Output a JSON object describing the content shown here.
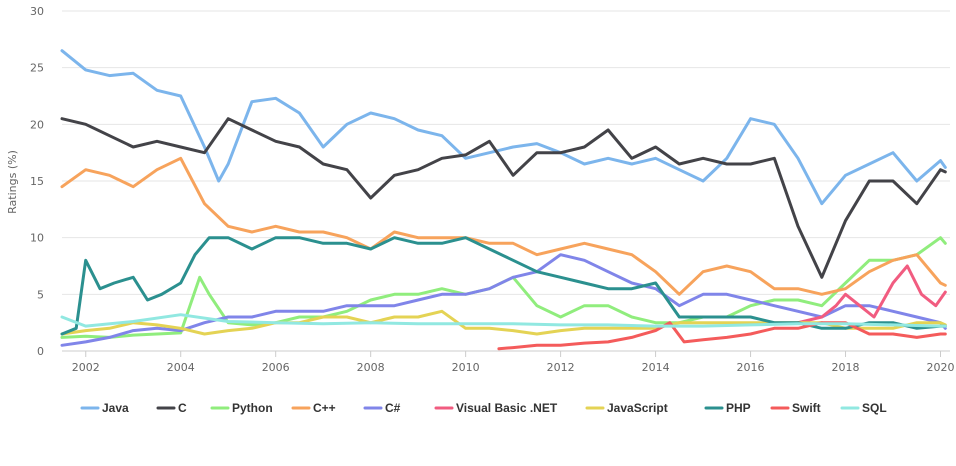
{
  "chart_data": {
    "type": "line",
    "title": "",
    "xlabel": "",
    "ylabel": "Ratings (%)",
    "xlim": [
      2001.5,
      2020.2
    ],
    "ylim": [
      0,
      30
    ],
    "yticks": [
      0,
      5,
      10,
      15,
      20,
      25,
      30
    ],
    "xticks": [
      2002,
      2004,
      2006,
      2008,
      2010,
      2012,
      2014,
      2016,
      2018,
      2020
    ],
    "grid": true,
    "legend": "bottom",
    "series": [
      {
        "name": "Java",
        "color": "#7cb5ec",
        "x": [
          2001.5,
          2002,
          2002.5,
          2003,
          2003.5,
          2004,
          2004.5,
          2004.8,
          2005,
          2005.5,
          2006,
          2006.5,
          2007,
          2007.5,
          2008,
          2008.5,
          2009,
          2009.5,
          2010,
          2010.5,
          2011,
          2011.5,
          2012,
          2012.5,
          2013,
          2013.5,
          2014,
          2014.5,
          2015,
          2015.5,
          2016,
          2016.5,
          2017,
          2017.5,
          2018,
          2018.5,
          2019,
          2019.5,
          2020,
          2020.1
        ],
        "y": [
          26.5,
          24.8,
          24.3,
          24.5,
          23,
          22.5,
          18,
          15,
          16.5,
          22,
          22.3,
          21,
          18,
          20,
          21,
          20.5,
          19.5,
          19,
          17,
          17.5,
          18,
          18.3,
          17.5,
          16.5,
          17,
          16.5,
          17,
          16,
          15,
          17,
          20.5,
          20,
          17,
          13,
          15.5,
          16.5,
          17.5,
          15,
          16.8,
          16.2
        ]
      },
      {
        "name": "C",
        "color": "#434348",
        "x": [
          2001.5,
          2002,
          2002.5,
          2003,
          2003.5,
          2004,
          2004.5,
          2005,
          2005.5,
          2006,
          2006.5,
          2007,
          2007.5,
          2008,
          2008.5,
          2009,
          2009.5,
          2010,
          2010.5,
          2011,
          2011.5,
          2012,
          2012.5,
          2013,
          2013.5,
          2014,
          2014.5,
          2015,
          2015.5,
          2016,
          2016.5,
          2017,
          2017.5,
          2018,
          2018.5,
          2019,
          2019.5,
          2020,
          2020.1
        ],
        "y": [
          20.5,
          20,
          19,
          18,
          18.5,
          18,
          17.5,
          20.5,
          19.5,
          18.5,
          18,
          16.5,
          16,
          13.5,
          15.5,
          16,
          17,
          17.3,
          18.5,
          15.5,
          17.5,
          17.5,
          18,
          19.5,
          17,
          18,
          16.5,
          17,
          16.5,
          16.5,
          17,
          11,
          6.5,
          11.5,
          15,
          15,
          13,
          16,
          15.8
        ]
      },
      {
        "name": "Python",
        "color": "#90ed7d",
        "x": [
          2001.5,
          2002,
          2002.5,
          2003,
          2003.5,
          2004,
          2004.4,
          2004.6,
          2005,
          2005.5,
          2006,
          2006.5,
          2007,
          2007.5,
          2008,
          2008.5,
          2009,
          2009.5,
          2010,
          2010.5,
          2011,
          2011.5,
          2012,
          2012.5,
          2013,
          2013.5,
          2014,
          2014.5,
          2015,
          2015.5,
          2016,
          2016.5,
          2017,
          2017.5,
          2018,
          2018.5,
          2019,
          2019.5,
          2020,
          2020.1
        ],
        "y": [
          1.2,
          1.3,
          1.2,
          1.4,
          1.5,
          1.6,
          6.5,
          5,
          2.5,
          2.3,
          2.5,
          3,
          3,
          3.5,
          4.5,
          5,
          5,
          5.5,
          5,
          5.5,
          6.5,
          4,
          3,
          4,
          4,
          3,
          2.5,
          2.5,
          3,
          3,
          4,
          4.5,
          4.5,
          4,
          6,
          8,
          8,
          8.5,
          10,
          9.5
        ]
      },
      {
        "name": "C++",
        "color": "#f7a35c",
        "x": [
          2001.5,
          2002,
          2002.5,
          2003,
          2003.5,
          2004,
          2004.5,
          2005,
          2005.5,
          2006,
          2006.5,
          2007,
          2007.5,
          2008,
          2008.5,
          2009,
          2009.5,
          2010,
          2010.5,
          2011,
          2011.5,
          2012,
          2012.5,
          2013,
          2013.5,
          2014,
          2014.5,
          2015,
          2015.5,
          2016,
          2016.5,
          2017,
          2017.5,
          2018,
          2018.5,
          2019,
          2019.5,
          2020,
          2020.1
        ],
        "y": [
          14.5,
          16,
          15.5,
          14.5,
          16,
          17,
          13,
          11,
          10.5,
          11,
          10.5,
          10.5,
          10,
          9,
          10.5,
          10,
          10,
          10,
          9.5,
          9.5,
          8.5,
          9,
          9.5,
          9,
          8.5,
          7,
          5,
          7,
          7.5,
          7,
          5.5,
          5.5,
          5,
          5.5,
          7,
          8,
          8.5,
          6,
          5.8
        ]
      },
      {
        "name": "C#",
        "color": "#8085e9",
        "x": [
          2001.5,
          2002,
          2002.5,
          2003,
          2003.5,
          2004,
          2004.5,
          2005,
          2005.5,
          2006,
          2006.5,
          2007,
          2007.5,
          2008,
          2008.5,
          2009,
          2009.5,
          2010,
          2010.5,
          2011,
          2011.5,
          2012,
          2012.5,
          2013,
          2013.5,
          2014,
          2014.5,
          2015,
          2015.5,
          2016,
          2016.5,
          2017,
          2017.5,
          2018,
          2018.5,
          2019,
          2019.5,
          2020,
          2020.1
        ],
        "y": [
          0.5,
          0.8,
          1.2,
          1.8,
          2,
          1.8,
          2.5,
          3,
          3,
          3.5,
          3.5,
          3.5,
          4,
          4,
          4,
          4.5,
          5,
          5,
          5.5,
          6.5,
          7,
          8.5,
          8,
          7,
          6,
          5.5,
          4,
          5,
          5,
          4.5,
          4,
          3.5,
          3,
          4,
          4,
          3.5,
          3,
          2.5,
          2
        ]
      },
      {
        "name": "Visual Basic .NET",
        "color": "#f15c80",
        "x": [
          2017,
          2017.5,
          2017.8,
          2018,
          2018.3,
          2018.6,
          2019,
          2019.3,
          2019.6,
          2019.9,
          2020.1
        ],
        "y": [
          2.5,
          3,
          4,
          5,
          4,
          3,
          6,
          7.5,
          5,
          4,
          5.2
        ]
      },
      {
        "name": "JavaScript",
        "color": "#e4d354",
        "x": [
          2001.5,
          2002,
          2002.5,
          2003,
          2003.5,
          2004,
          2004.5,
          2005,
          2005.5,
          2006,
          2006.5,
          2007,
          2007.5,
          2008,
          2008.5,
          2009,
          2009.5,
          2010,
          2010.5,
          2011,
          2011.5,
          2012,
          2012.5,
          2013,
          2013.5,
          2014,
          2014.5,
          2015,
          2015.5,
          2016,
          2016.5,
          2017,
          2017.5,
          2018,
          2018.5,
          2019,
          2019.5,
          2020,
          2020.1
        ],
        "y": [
          1.5,
          1.8,
          2,
          2.5,
          2.3,
          2,
          1.5,
          1.8,
          2,
          2.5,
          2.5,
          3,
          3,
          2.5,
          3,
          3,
          3.5,
          2,
          2,
          1.8,
          1.5,
          1.8,
          2,
          2,
          2,
          2,
          2.5,
          2.5,
          2.5,
          2.5,
          2.5,
          2.5,
          2.5,
          2,
          2,
          2,
          2.5,
          2.5,
          2.3
        ]
      },
      {
        "name": "PHP",
        "color": "#2b908f",
        "x": [
          2001.5,
          2001.8,
          2002,
          2002.3,
          2002.6,
          2003,
          2003.3,
          2003.6,
          2004,
          2004.3,
          2004.6,
          2005,
          2005.5,
          2006,
          2006.5,
          2007,
          2007.5,
          2008,
          2008.5,
          2009,
          2009.5,
          2010,
          2010.5,
          2011,
          2011.5,
          2012,
          2012.5,
          2013,
          2013.5,
          2014,
          2014.5,
          2015,
          2015.5,
          2016,
          2016.5,
          2017,
          2017.5,
          2018,
          2018.5,
          2019,
          2019.5,
          2020,
          2020.1
        ],
        "y": [
          1.5,
          2,
          8,
          5.5,
          6,
          6.5,
          4.5,
          5,
          6,
          8.5,
          10,
          10,
          9,
          10,
          10,
          9.5,
          9.5,
          9,
          10,
          9.5,
          9.5,
          10,
          9,
          8,
          7,
          6.5,
          6,
          5.5,
          5.5,
          6,
          3,
          3,
          3,
          3,
          2.5,
          2.5,
          2,
          2,
          2.5,
          2.5,
          2,
          2.2,
          2.2
        ]
      },
      {
        "name": "Swift",
        "color": "#f45b5b",
        "x": [
          2010.7,
          2011,
          2011.5,
          2012,
          2012.5,
          2013,
          2013.5,
          2014,
          2014.3,
          2014.6,
          2015,
          2015.5,
          2016,
          2016.5,
          2017,
          2017.5,
          2018,
          2018.5,
          2019,
          2019.5,
          2020,
          2020.1
        ],
        "y": [
          0.2,
          0.3,
          0.5,
          0.5,
          0.7,
          0.8,
          1.2,
          1.8,
          2.5,
          0.8,
          1,
          1.2,
          1.5,
          2,
          2,
          2.5,
          2.5,
          1.5,
          1.5,
          1.2,
          1.5,
          1.5
        ]
      },
      {
        "name": "SQL",
        "color": "#91e8e1",
        "x": [
          2001.5,
          2002,
          2003,
          2004,
          2005,
          2006,
          2007,
          2008,
          2009,
          2010,
          2011,
          2012,
          2013,
          2014,
          2015,
          2016,
          2017,
          2018,
          2019,
          2020,
          2020.1
        ],
        "y": [
          3,
          2.2,
          2.6,
          3.2,
          2.6,
          2.5,
          2.4,
          2.5,
          2.4,
          2.4,
          2.4,
          2.3,
          2.3,
          2.2,
          2.2,
          2.3,
          2.4,
          2.4,
          2.3,
          2.2,
          2.2
        ]
      }
    ]
  }
}
